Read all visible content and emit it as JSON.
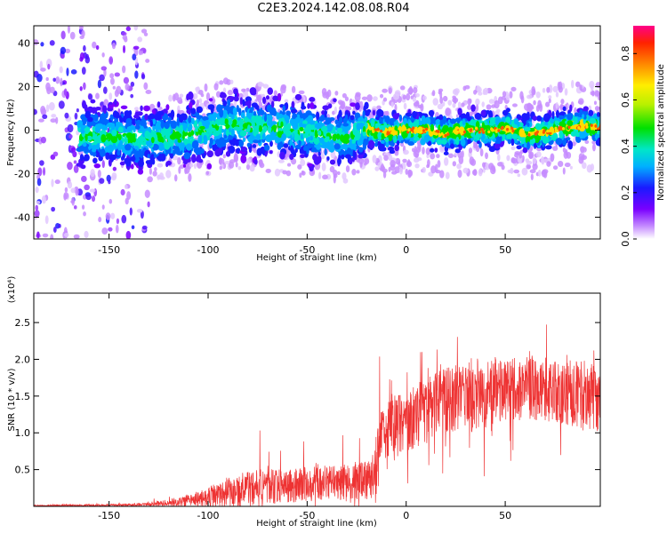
{
  "title": "C2E3.2024.142.08.08.R04",
  "chart_data": [
    {
      "type": "heatmap",
      "xlabel": "Height of straight line (km)",
      "ylabel": "Frequency (Hz)",
      "xlim": [
        -188,
        98
      ],
      "ylim": [
        -50,
        48
      ],
      "x_ticks": [
        -150,
        -100,
        -50,
        0,
        50
      ],
      "x_tick_labels": [
        "-150",
        "-100",
        "-50",
        "0",
        "50"
      ],
      "y_ticks": [
        -40,
        -20,
        0,
        20,
        40
      ],
      "y_tick_labels": [
        "-40",
        "-20",
        "0",
        "20",
        "40"
      ],
      "colorbar": {
        "label": "Normalized spectral amplitude",
        "range": [
          0.0,
          0.92
        ],
        "ticks": [
          0.0,
          0.2,
          0.4,
          0.6,
          0.8
        ],
        "tick_labels": [
          "0.0",
          "0.2",
          "0.4",
          "0.6",
          "0.8"
        ],
        "colormap": "rainbow"
      },
      "ridge": {
        "x": [
          -150,
          -130,
          -110,
          -100,
          -90,
          -80,
          -70,
          -60,
          -50,
          -40,
          -30,
          -20,
          -10,
          0,
          10,
          20,
          30,
          40,
          50,
          60,
          70,
          80,
          90,
          97
        ],
        "y": [
          -3,
          -4,
          -2,
          0,
          3,
          2,
          1,
          0,
          -1,
          -2,
          -4,
          1,
          -1,
          0,
          0,
          -2,
          0,
          0,
          1,
          -2,
          -1,
          1,
          2,
          1
        ]
      }
    },
    {
      "type": "line",
      "xlabel": "Height of straight line (km)",
      "ylabel": "SNR (10 * v/v)",
      "y_multiplier": "(x10⁴)",
      "xlim": [
        -188,
        98
      ],
      "ylim": [
        0,
        2.9
      ],
      "x_ticks": [
        -150,
        -100,
        -50,
        0,
        50
      ],
      "x_tick_labels": [
        "-150",
        "-100",
        "-50",
        "0",
        "50"
      ],
      "y_ticks": [
        0.5,
        1.0,
        1.5,
        2.0,
        2.5
      ],
      "y_tick_labels": [
        "0.5",
        "1.0",
        "1.5",
        "2.0",
        "2.5"
      ],
      "series_color": "#ee3333",
      "envelope": {
        "x": [
          -188,
          -160,
          -140,
          -130,
          -120,
          -110,
          -100,
          -90,
          -80,
          -70,
          -60,
          -50,
          -40,
          -30,
          -20,
          -15,
          -14,
          -10,
          0,
          10,
          20,
          30,
          40,
          50,
          60,
          70,
          80,
          90,
          97
        ],
        "base": [
          0.01,
          0.015,
          0.02,
          0.03,
          0.05,
          0.08,
          0.13,
          0.2,
          0.24,
          0.27,
          0.28,
          0.3,
          0.32,
          0.33,
          0.38,
          0.42,
          0.9,
          1.05,
          1.15,
          1.3,
          1.45,
          1.5,
          1.55,
          1.6,
          1.6,
          1.55,
          1.55,
          1.5,
          1.45
        ],
        "spread": [
          0.01,
          0.015,
          0.02,
          0.03,
          0.06,
          0.1,
          0.16,
          0.25,
          0.3,
          0.3,
          0.28,
          0.3,
          0.3,
          0.3,
          0.35,
          0.5,
          0.5,
          0.5,
          0.55,
          0.55,
          0.6,
          0.65,
          0.6,
          0.55,
          0.55,
          0.5,
          0.55,
          0.6,
          0.6
        ]
      }
    }
  ]
}
